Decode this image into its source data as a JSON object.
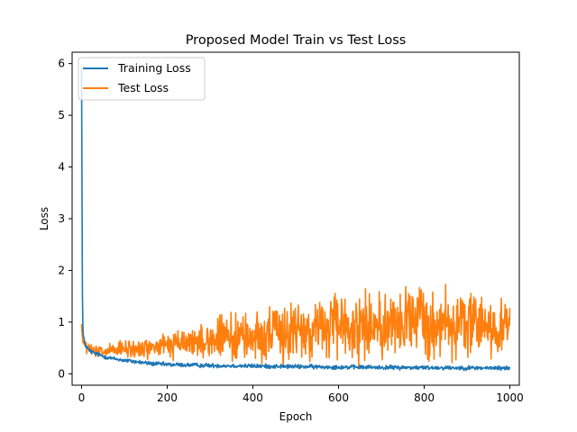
{
  "chart_data": {
    "type": "line",
    "title": "Proposed Model Train vs Test Loss",
    "xlabel": "Epoch",
    "ylabel": "Loss",
    "xlim": [
      -22,
      1022
    ],
    "ylim": [
      -0.22,
      6.22
    ],
    "xticks": [
      0,
      200,
      400,
      600,
      800,
      1000
    ],
    "yticks": [
      0,
      1,
      2,
      3,
      4,
      5,
      6
    ],
    "grid": false,
    "legend_position": "top-left",
    "series": [
      {
        "name": "Training Loss",
        "color": "#1f77b4",
        "x": [
          0,
          1,
          2,
          3,
          4,
          6,
          8,
          10,
          15,
          20,
          30,
          40,
          50,
          70,
          100,
          130,
          160,
          200,
          250,
          300,
          350,
          400,
          450,
          500,
          550,
          600,
          650,
          700,
          750,
          800,
          850,
          900,
          950,
          1000
        ],
        "y": [
          5.9,
          3.8,
          1.6,
          0.95,
          0.75,
          0.65,
          0.58,
          0.54,
          0.48,
          0.44,
          0.4,
          0.37,
          0.34,
          0.3,
          0.26,
          0.23,
          0.2,
          0.18,
          0.17,
          0.16,
          0.155,
          0.15,
          0.145,
          0.14,
          0.135,
          0.13,
          0.128,
          0.125,
          0.122,
          0.12,
          0.118,
          0.115,
          0.112,
          0.11
        ],
        "noise": 0.02
      },
      {
        "name": "Test Loss",
        "color": "#ff7f0e",
        "x": [
          0,
          1,
          2,
          4,
          6,
          10,
          20,
          30,
          50,
          75,
          100,
          130,
          160,
          200,
          250,
          300,
          350,
          400,
          450,
          500,
          550,
          600,
          650,
          700,
          750,
          800,
          850,
          900,
          950,
          1000
        ],
        "y": [
          0.98,
          0.8,
          0.7,
          0.62,
          0.58,
          0.52,
          0.47,
          0.43,
          0.42,
          0.45,
          0.47,
          0.48,
          0.5,
          0.55,
          0.6,
          0.65,
          0.7,
          0.72,
          0.78,
          0.82,
          0.88,
          0.9,
          0.92,
          0.95,
          1.0,
          1.0,
          0.98,
          0.95,
          0.92,
          0.9
        ],
        "noise": [
          0.03,
          0.03,
          0.03,
          0.03,
          0.04,
          0.05,
          0.06,
          0.06,
          0.06,
          0.07,
          0.08,
          0.09,
          0.1,
          0.12,
          0.14,
          0.17,
          0.2,
          0.22,
          0.25,
          0.27,
          0.28,
          0.3,
          0.3,
          0.3,
          0.32,
          0.33,
          0.32,
          0.3,
          0.28,
          0.27
        ]
      }
    ]
  }
}
